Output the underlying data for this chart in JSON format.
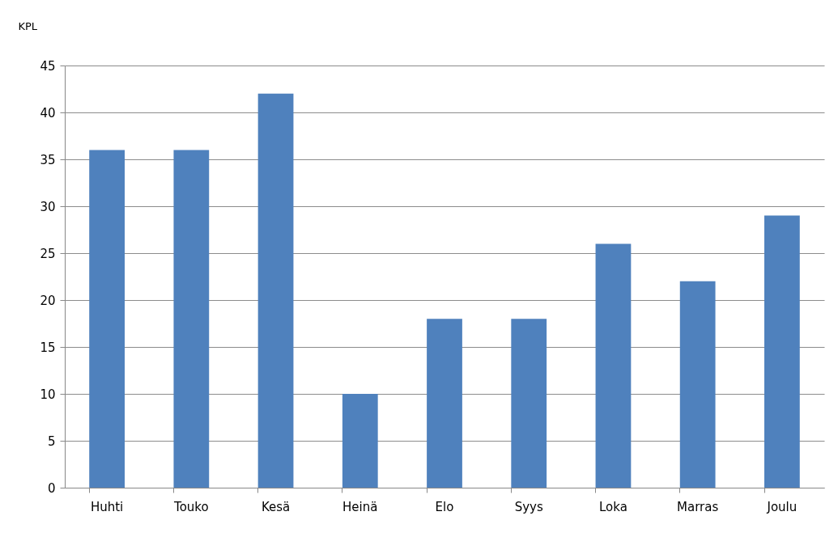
{
  "chart_data": {
    "type": "bar",
    "ylabel": "KPL",
    "categories": [
      "Huhti",
      "Touko",
      "Kesä",
      "Heinä",
      "Elo",
      "Syys",
      "Loka",
      "Marras",
      "Joulu"
    ],
    "values": [
      36,
      36,
      42,
      10,
      18,
      18,
      26,
      22,
      29
    ],
    "color": "#4f81bd",
    "ylim": [
      0,
      45
    ],
    "yticks": [
      0,
      5,
      10,
      15,
      20,
      25,
      30,
      35,
      40,
      45
    ],
    "grid": "y"
  }
}
